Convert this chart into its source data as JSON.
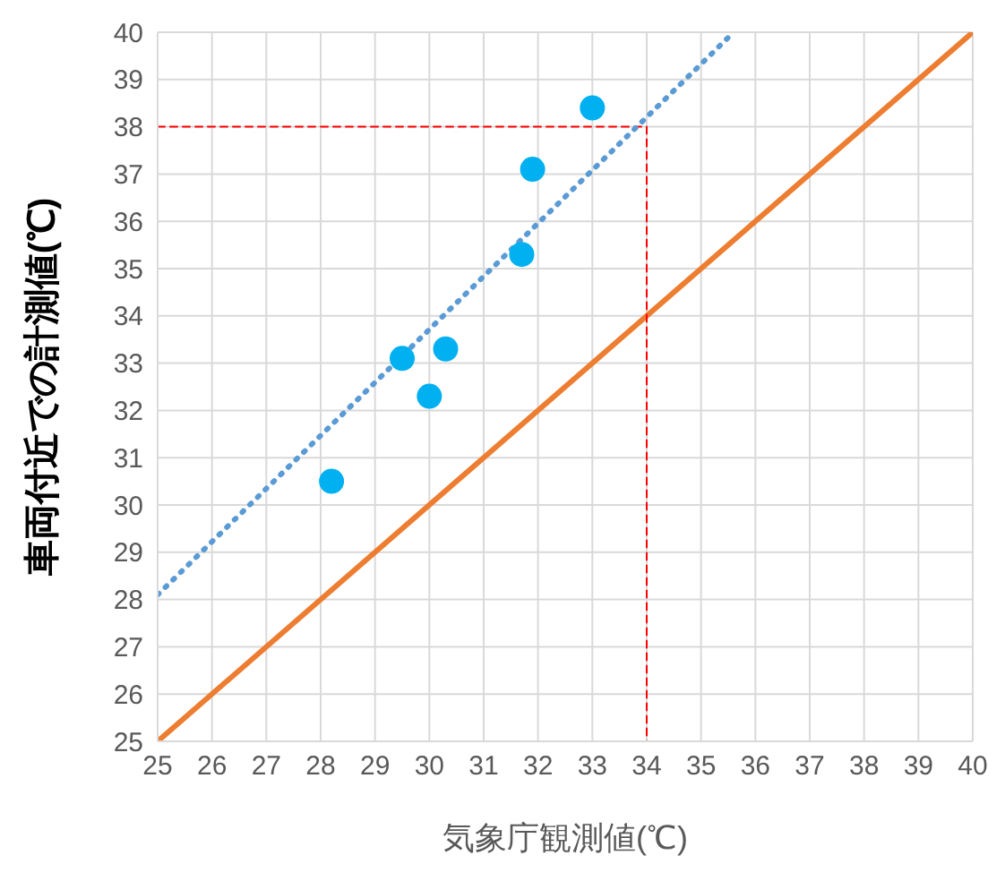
{
  "chart_data": {
    "type": "scatter",
    "xlabel": "気象庁観測値(℃)",
    "ylabel": "車両付近での計測値(℃)",
    "xlim": [
      25,
      40
    ],
    "ylim": [
      25,
      40
    ],
    "xticks": [
      25,
      26,
      27,
      28,
      29,
      30,
      31,
      32,
      33,
      34,
      35,
      36,
      37,
      38,
      39,
      40
    ],
    "yticks": [
      25,
      26,
      27,
      28,
      29,
      30,
      31,
      32,
      33,
      34,
      35,
      36,
      37,
      38,
      39,
      40
    ],
    "grid": true,
    "series": [
      {
        "type": "line",
        "color": "#ed7d31",
        "x": [
          25,
          40
        ],
        "values": [
          25,
          40
        ],
        "line_style": "solid",
        "marker": "none"
      },
      {
        "type": "line",
        "color": "#ff0000",
        "x": [
          25,
          34,
          34
        ],
        "values": [
          38,
          38,
          25
        ],
        "line_style": "dashed",
        "marker": "none"
      },
      {
        "type": "line",
        "color": "#5b9bd5",
        "x": [
          25,
          35.6
        ],
        "values": [
          28.1,
          40
        ],
        "line_style": "dotted",
        "marker": "none"
      },
      {
        "color": "#00b0f0",
        "x": [
          28.2,
          29.5,
          30.0,
          30.3,
          31.7,
          31.9,
          33.0
        ],
        "values": [
          30.5,
          33.1,
          32.3,
          33.3,
          35.3,
          37.1,
          38.4
        ],
        "marker": "circle"
      }
    ]
  }
}
